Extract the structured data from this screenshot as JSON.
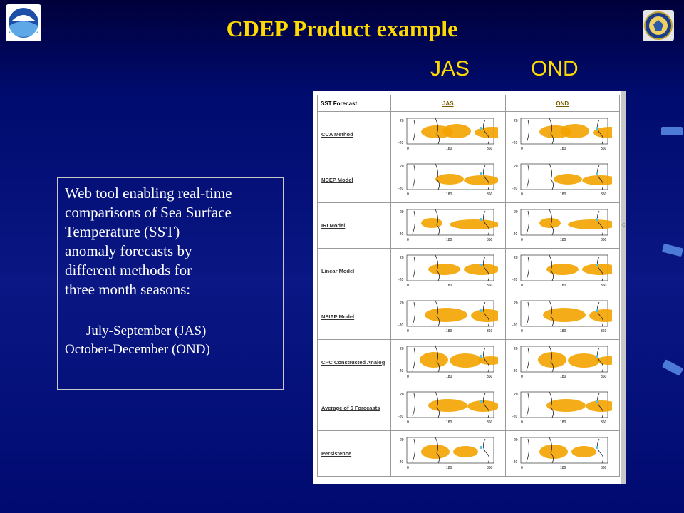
{
  "slide": {
    "title": "CDEP Product example",
    "season_headers": [
      "JAS",
      "OND"
    ]
  },
  "description": {
    "lines": [
      "Web tool enabling real-time",
      "comparisons of Sea Surface",
      "Temperature (SST)",
      "anomaly forecasts by",
      "different methods for",
      "three month seasons:"
    ],
    "seasons": [
      "July-September (JAS)",
      "October-December (OND)"
    ]
  },
  "table": {
    "corner_label": "SST Forecast",
    "columns": [
      "JAS",
      "OND"
    ],
    "rows": [
      "CCA Method",
      "NCEP Model",
      "IRI Model",
      "Linear Model",
      "NSIPP Model",
      "CPC Constructed Analog",
      "Average of 6 Forecasts",
      "Persistence"
    ],
    "map_axis": {
      "y_top": "20",
      "y_bottom": "-20",
      "x_left": "0",
      "x_mid": "180",
      "x_right": "360"
    }
  },
  "colors": {
    "title": "#ffd900",
    "positive_anomaly": "#f4a300",
    "negative_anomaly": "#4fc3e8"
  },
  "icons": {
    "left_logo": "noaa-logo",
    "right_logo": "commerce-department-seal"
  }
}
